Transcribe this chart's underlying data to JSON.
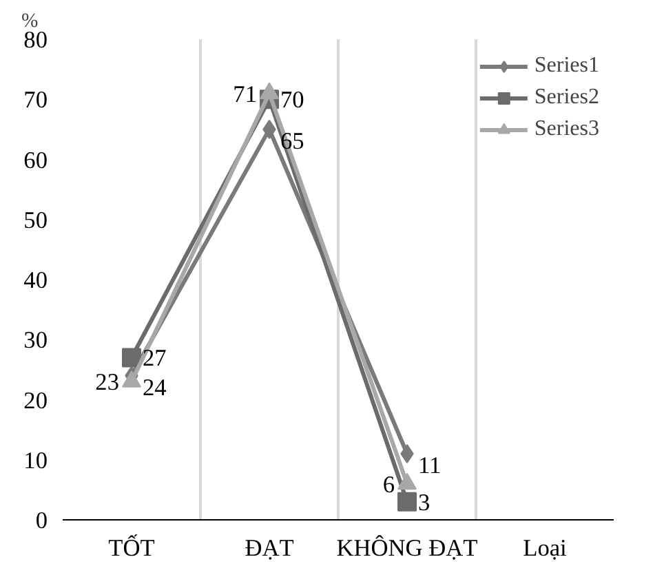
{
  "chart_data": {
    "type": "line",
    "ylabel": "%",
    "categories": [
      "TỐT",
      "ĐẠT",
      "KHÔNG ĐẠT",
      "Loại"
    ],
    "series": [
      {
        "name": "Series1",
        "color": "#7a7a7a",
        "marker": "diamond",
        "values": [
          24,
          65,
          11,
          null
        ]
      },
      {
        "name": "Series2",
        "color": "#6b6b6b",
        "marker": "square",
        "values": [
          27,
          70,
          3,
          null
        ]
      },
      {
        "name": "Series3",
        "color": "#a8a8a8",
        "marker": "triangle",
        "values": [
          23,
          71,
          6,
          null
        ]
      }
    ],
    "ylim": [
      0,
      80
    ],
    "yticks": [
      0,
      10,
      20,
      30,
      40,
      50,
      60,
      70,
      80
    ],
    "grid": "x",
    "legend": "top right",
    "data_labels": true
  }
}
